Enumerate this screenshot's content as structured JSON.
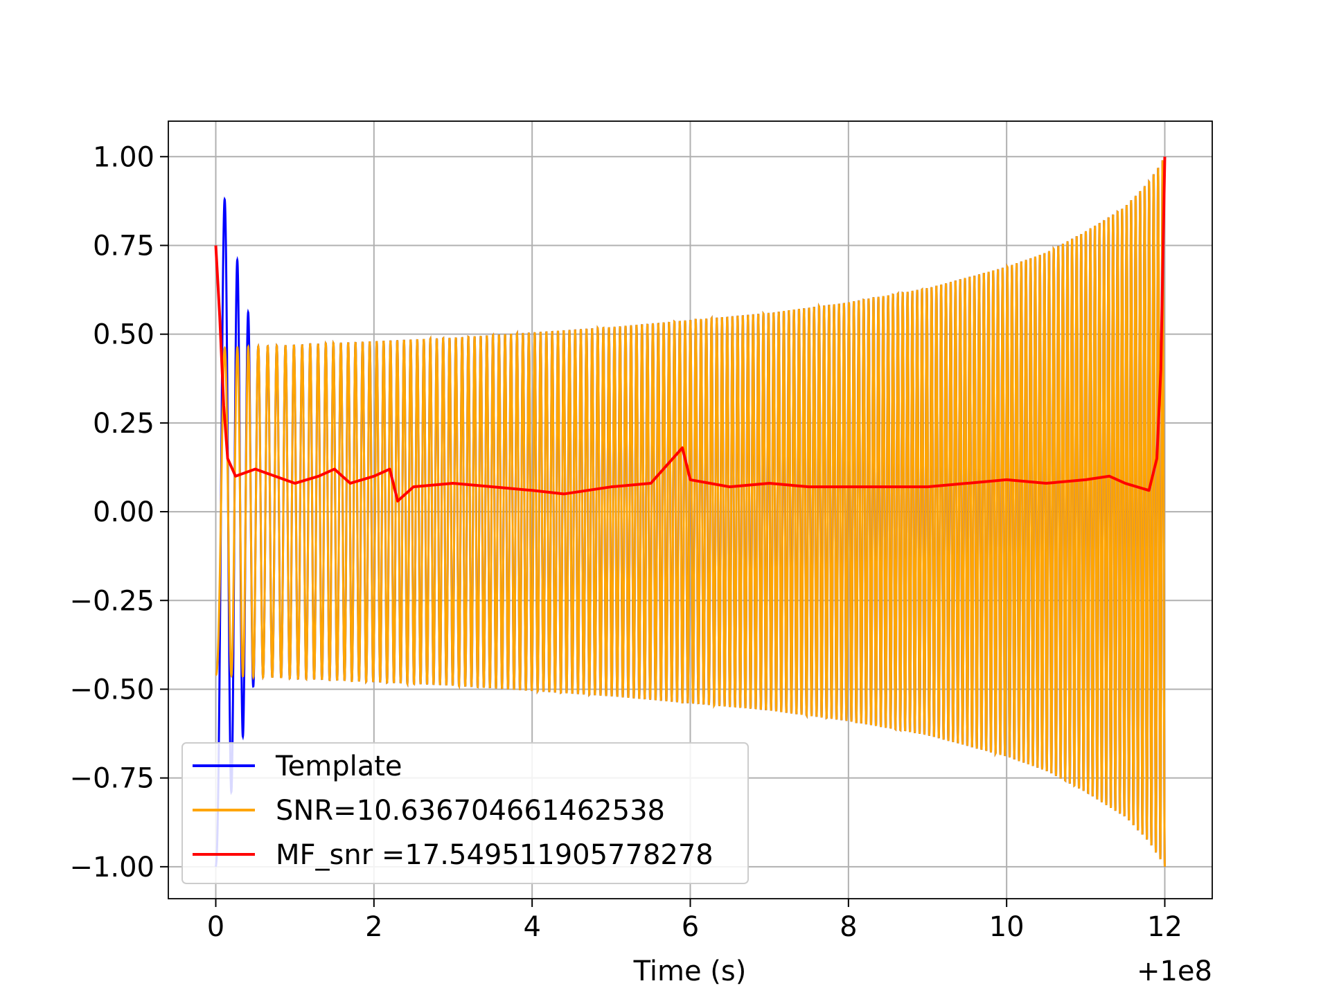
{
  "chart_data": {
    "type": "line",
    "title": "",
    "xlabel": "Time (s)",
    "ylabel": "",
    "x_offset_label": "+1e8",
    "xlim": [
      -0.6,
      12.6
    ],
    "ylim": [
      -1.09,
      1.1
    ],
    "x_ticks": [
      0,
      2,
      4,
      6,
      8,
      10,
      12
    ],
    "x_tick_labels": [
      "0",
      "2",
      "4",
      "6",
      "8",
      "10",
      "12"
    ],
    "y_ticks": [
      1.0,
      0.75,
      0.5,
      0.25,
      0.0,
      -0.25,
      -0.5,
      -0.75,
      -1.0
    ],
    "y_tick_labels": [
      "1.00",
      "0.75",
      "0.50",
      "0.25",
      "0.00",
      "−0.25",
      "−0.50",
      "−0.75",
      "−1.00"
    ],
    "grid": true,
    "legend_position": "lower-left",
    "series": [
      {
        "name": "Template",
        "color": "#0000ff",
        "kind": "chirp",
        "x": [
          0.0,
          0.5,
          1,
          2,
          3,
          4,
          5,
          6,
          7,
          8,
          9,
          10,
          10.5,
          11,
          11.5,
          11.8,
          12.0
        ],
        "envelope": [
          1.0,
          0.465,
          0.47,
          0.48,
          0.49,
          0.505,
          0.52,
          0.54,
          0.56,
          0.59,
          0.63,
          0.69,
          0.73,
          0.79,
          0.86,
          0.93,
          1.0
        ],
        "cycles": 170
      },
      {
        "name": "SNR=10.636704661462538",
        "color": "#ffa500",
        "kind": "chirp",
        "x": [
          0.0,
          0.5,
          1,
          2,
          3,
          4,
          5,
          6,
          7,
          8,
          9,
          10,
          10.5,
          11,
          11.5,
          11.8,
          12.0
        ],
        "envelope": [
          0.46,
          0.465,
          0.47,
          0.48,
          0.49,
          0.505,
          0.52,
          0.54,
          0.56,
          0.59,
          0.63,
          0.69,
          0.73,
          0.79,
          0.86,
          0.93,
          1.0
        ],
        "cycles": 170
      },
      {
        "name": "MF_snr =17.549511905778278",
        "color": "#ff0000",
        "kind": "line",
        "x": [
          0.0,
          0.05,
          0.1,
          0.15,
          0.25,
          0.5,
          1.0,
          1.3,
          1.5,
          1.7,
          2.0,
          2.2,
          2.3,
          2.5,
          3.0,
          3.5,
          4.0,
          4.4,
          5.0,
          5.5,
          5.9,
          6.0,
          6.5,
          7.0,
          7.5,
          8.0,
          8.5,
          9.0,
          9.5,
          10.0,
          10.5,
          11.0,
          11.3,
          11.5,
          11.8,
          11.9,
          11.95,
          12.0
        ],
        "y": [
          0.75,
          0.55,
          0.3,
          0.15,
          0.1,
          0.12,
          0.08,
          0.1,
          0.12,
          0.08,
          0.1,
          0.12,
          0.03,
          0.07,
          0.08,
          0.07,
          0.06,
          0.05,
          0.07,
          0.08,
          0.18,
          0.09,
          0.07,
          0.08,
          0.07,
          0.07,
          0.07,
          0.07,
          0.08,
          0.09,
          0.08,
          0.09,
          0.1,
          0.08,
          0.06,
          0.15,
          0.4,
          1.0
        ]
      }
    ]
  }
}
